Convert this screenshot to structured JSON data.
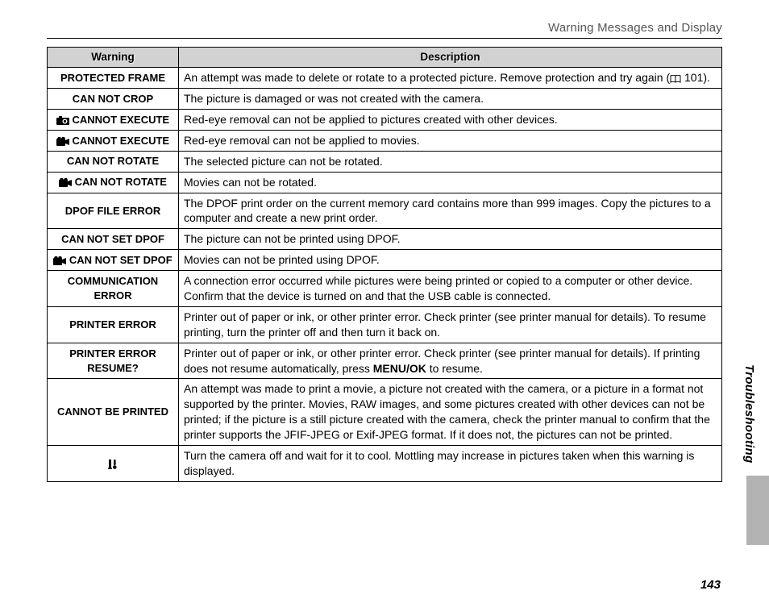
{
  "header": "Warning Messages and Display",
  "side_label": "Troubleshooting",
  "page_number": "143",
  "columns": {
    "warning": "Warning",
    "description": "Description"
  },
  "bookref_page": "101",
  "menu_ok": "MENU/OK",
  "rows": [
    {
      "warning": "PROTECTED FRAME",
      "icon": null,
      "description_pre": "An attempt was made to delete or rotate to a protected picture.  Remove protection and try again (",
      "description_post": ").",
      "has_bookref": true
    },
    {
      "warning": "CAN NOT CROP",
      "icon": null,
      "description": "The picture is damaged or was not created with the camera."
    },
    {
      "warning": " CANNOT EXECUTE",
      "icon": "camera",
      "description": "Red-eye removal can not be applied to pictures created with other devices."
    },
    {
      "warning": " CANNOT EXECUTE",
      "icon": "movie",
      "description": "Red-eye removal can not be applied to movies."
    },
    {
      "warning": "CAN NOT ROTATE",
      "icon": null,
      "description": "The selected picture can not be rotated."
    },
    {
      "warning": " CAN NOT ROTATE",
      "icon": "movie",
      "description": "Movies can not be rotated."
    },
    {
      "warning": "DPOF FILE ERROR",
      "icon": null,
      "description": "The DPOF print order on the current memory card contains more than 999 images.  Copy the pictures to a computer and create a new print order."
    },
    {
      "warning": "CAN NOT SET DPOF",
      "icon": null,
      "description": "The picture can not be printed using DPOF."
    },
    {
      "warning": " CAN NOT SET DPOF",
      "icon": "movie",
      "description": "Movies can not be printed using DPOF."
    },
    {
      "warning": "COMMUNICATION ERROR",
      "icon": null,
      "description": "A connection error occurred while pictures were being printed or copied to a computer or other device.  Confirm that the device is turned on and that the USB cable is connected."
    },
    {
      "warning": "PRINTER ERROR",
      "icon": null,
      "description": "Printer out of paper or ink, or other printer error.  Check printer (see printer manual for details).  To resume printing, turn the printer off and then turn it back on."
    },
    {
      "warning": "PRINTER ERROR RESUME?",
      "icon": null,
      "description_pre": "Printer out of paper or ink, or other printer error.  Check printer (see printer manual for details).  If printing does not resume automatically, press ",
      "description_post": " to resume.",
      "has_menuok": true
    },
    {
      "warning": "CANNOT BE PRINTED",
      "icon": null,
      "description": "An attempt was made to print a movie, a picture not created with the camera, or a picture in a format not supported by the printer.  Movies, RAW images, and some pictures created with other devices can not be printed; if the picture is a still picture created with the camera, check the printer manual to confirm that the printer supports the JFIF-JPEG or Exif-JPEG format.  If it does not, the pictures can not be printed."
    },
    {
      "warning": "",
      "icon": "temp",
      "description": "Turn the camera off and wait for it to cool.  Mottling may increase in pictures taken when this warning is displayed."
    }
  ]
}
